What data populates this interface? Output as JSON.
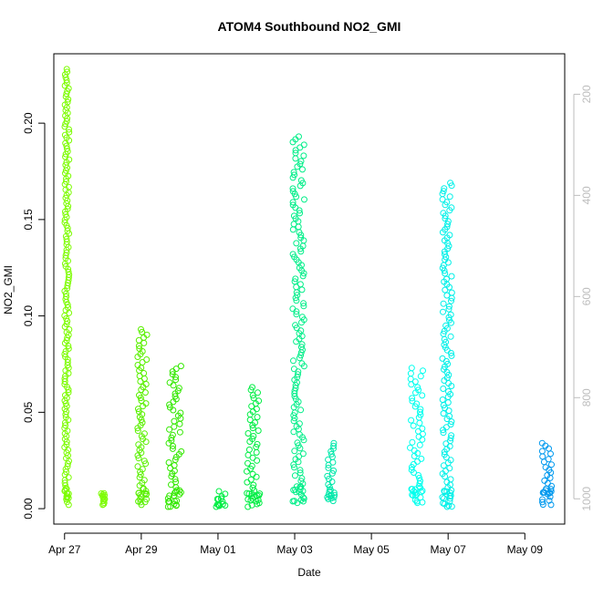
{
  "chart_data": {
    "type": "scatter",
    "title": "ATOM4 Southbound NO2_GMI",
    "xlabel": "Date",
    "ylabel": "NO2_GMI",
    "x_ticks": [
      "Apr 27",
      "Apr 29",
      "May 01",
      "May 03",
      "May 05",
      "May 07",
      "May 09"
    ],
    "x_tick_days": [
      0,
      2,
      4,
      6,
      8,
      10,
      12
    ],
    "xlim_days": [
      -0.28,
      13.04
    ],
    "ylim": [
      -0.008,
      0.236
    ],
    "y_ticks": [
      0.0,
      0.05,
      0.1,
      0.15,
      0.2
    ],
    "y_tick_labels": [
      "0.00",
      "0.05",
      "0.10",
      "0.15",
      "0.20"
    ],
    "y2_ticks": [
      200,
      400,
      600,
      800,
      1000
    ],
    "y2_tick_labels": [
      "200",
      "400",
      "600",
      "800",
      "1000"
    ],
    "y2lim": [
      1050,
      120
    ],
    "y2_color": "#bdbdbd",
    "series": [
      {
        "x_start": 0.0,
        "x_end": 0.12,
        "y_low": 0.002,
        "y_high": 0.228,
        "color": "#7cfc00"
      },
      {
        "x_start": 0.95,
        "x_end": 1.05,
        "y_low": 0.002,
        "y_high": 0.008,
        "color": "#7cfc00"
      },
      {
        "x_start": 1.9,
        "x_end": 2.15,
        "y_low": 0.002,
        "y_high": 0.093,
        "color": "#5af000"
      },
      {
        "x_start": 2.7,
        "x_end": 3.05,
        "y_low": 0.001,
        "y_high": 0.074,
        "color": "#33e800"
      },
      {
        "x_start": 3.95,
        "x_end": 4.2,
        "y_low": 0.001,
        "y_high": 0.009,
        "color": "#00ee44"
      },
      {
        "x_start": 4.75,
        "x_end": 5.1,
        "y_low": 0.001,
        "y_high": 0.063,
        "color": "#00ee44"
      },
      {
        "x_start": 5.95,
        "x_end": 6.25,
        "y_low": 0.003,
        "y_high": 0.193,
        "color": "#00ee88"
      },
      {
        "x_start": 6.85,
        "x_end": 7.05,
        "y_low": 0.004,
        "y_high": 0.034,
        "color": "#00e8aa"
      },
      {
        "x_start": 9.0,
        "x_end": 9.35,
        "y_low": 0.003,
        "y_high": 0.073,
        "color": "#00ffee"
      },
      {
        "x_start": 9.85,
        "x_end": 10.1,
        "y_low": 0.001,
        "y_high": 0.169,
        "color": "#00f0e8"
      },
      {
        "x_start": 12.45,
        "x_end": 12.7,
        "y_low": 0.002,
        "y_high": 0.034,
        "color": "#0099ee"
      }
    ]
  }
}
